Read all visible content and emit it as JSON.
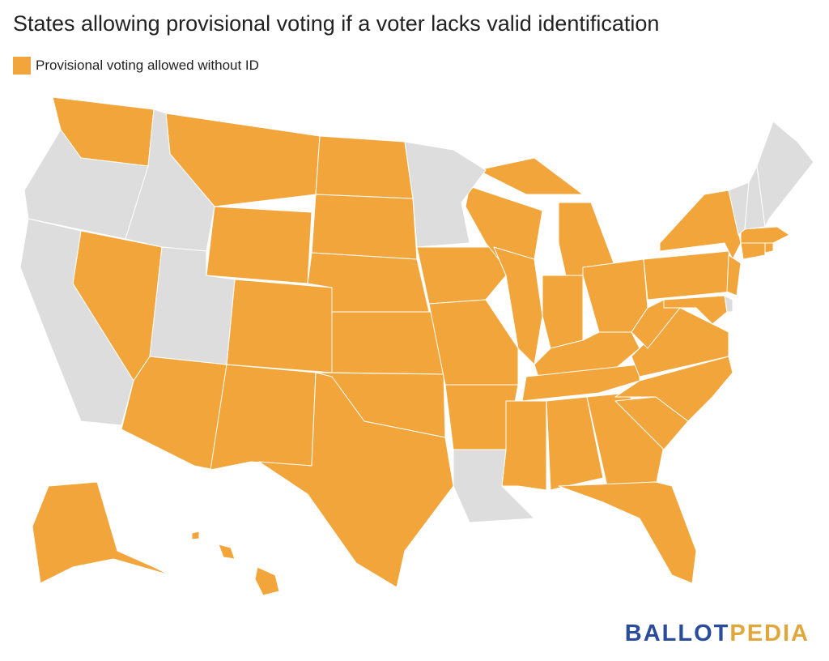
{
  "header": {
    "title": "States allowing provisional voting if a voter lacks valid identification"
  },
  "legend": {
    "label": "Provisional voting allowed without ID",
    "color": "#f2a53a"
  },
  "map": {
    "other_color": "#dddddd"
  },
  "logo": {
    "part1": "BALLOT",
    "part1_color": "#2b4c9b",
    "part2": "PEDIA",
    "part2_color": "#e0a73c"
  }
}
